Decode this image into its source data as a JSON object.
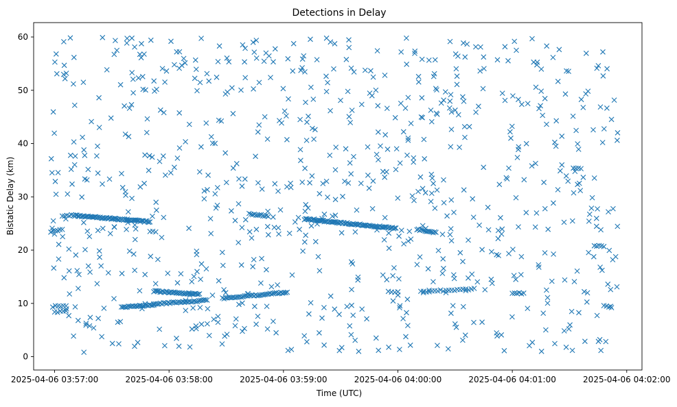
{
  "chart_data": {
    "type": "scatter",
    "title": "Detections in Delay",
    "xlabel": "Time (UTC)",
    "ylabel": "Bistatic Delay (km)",
    "marker": "x",
    "color": "#1f77b4",
    "grid": false,
    "legend": "none",
    "x_start": "2025-04-06 03:56:49",
    "x_end": "2025-04-06 04:02:08",
    "ylim": [
      -2.5,
      62.7
    ],
    "xticks": [
      "2025-04-06 03:57:00",
      "2025-04-06 03:58:00",
      "2025-04-06 03:59:00",
      "2025-04-06 04:00:00",
      "2025-04-06 04:01:00",
      "2025-04-06 04:02:00"
    ],
    "yticks": [
      0,
      10,
      20,
      30,
      40,
      50,
      60
    ],
    "tracks": [
      {
        "start": "2025-04-06 03:56:58",
        "end": "2025-04-06 03:57:04",
        "y_start": 23.5,
        "y_end": 23.9,
        "count": 6
      },
      {
        "start": "2025-04-06 03:57:04",
        "end": "2025-04-06 03:57:10",
        "y_start": 26.3,
        "y_end": 26.6,
        "count": 6
      },
      {
        "start": "2025-04-06 03:57:10",
        "end": "2025-04-06 03:57:50",
        "y_start": 26.5,
        "y_end": 25.3,
        "count": 70
      },
      {
        "start": "2025-04-06 03:57:50",
        "end": "2025-04-06 03:57:53",
        "y_start": 23.6,
        "y_end": 23.4,
        "count": 3
      },
      {
        "start": "2025-04-06 03:56:59",
        "end": "2025-04-06 03:57:06",
        "y_start": 9.4,
        "y_end": 9.6,
        "count": 6
      },
      {
        "start": "2025-04-06 03:57:00",
        "end": "2025-04-06 03:57:06",
        "y_start": 8.4,
        "y_end": 8.6,
        "count": 5
      },
      {
        "start": "2025-04-06 03:57:35",
        "end": "2025-04-06 03:57:52",
        "y_start": 9.3,
        "y_end": 9.7,
        "count": 24
      },
      {
        "start": "2025-04-06 03:57:52",
        "end": "2025-04-06 03:58:16",
        "y_start": 12.3,
        "y_end": 11.7,
        "count": 38
      },
      {
        "start": "2025-04-06 03:57:52",
        "end": "2025-04-06 03:58:20",
        "y_start": 9.9,
        "y_end": 10.6,
        "count": 34
      },
      {
        "start": "2025-04-06 03:58:28",
        "end": "2025-04-06 03:59:02",
        "y_start": 10.9,
        "y_end": 12.1,
        "count": 42
      },
      {
        "start": "2025-04-06 03:58:42",
        "end": "2025-04-06 03:58:52",
        "y_start": 26.8,
        "y_end": 26.4,
        "count": 12
      },
      {
        "start": "2025-04-06 03:59:11",
        "end": "2025-04-06 03:59:59",
        "y_start": 25.8,
        "y_end": 24.1,
        "count": 80
      },
      {
        "start": "2025-04-06 04:00:10",
        "end": "2025-04-06 04:00:20",
        "y_start": 23.9,
        "y_end": 23.3,
        "count": 15
      },
      {
        "start": "2025-04-06 03:59:55",
        "end": "2025-04-06 04:00:00",
        "y_start": 12.3,
        "y_end": 12.1,
        "count": 4
      },
      {
        "start": "2025-04-06 04:00:12",
        "end": "2025-04-06 04:00:40",
        "y_start": 12.2,
        "y_end": 12.7,
        "count": 20
      },
      {
        "start": "2025-04-06 04:01:00",
        "end": "2025-04-06 04:01:06",
        "y_start": 12.0,
        "y_end": 11.9,
        "count": 6
      },
      {
        "start": "2025-04-06 04:01:32",
        "end": "2025-04-06 04:01:36",
        "y_start": 35.5,
        "y_end": 35.4,
        "count": 4
      },
      {
        "start": "2025-04-06 04:01:43",
        "end": "2025-04-06 04:01:48",
        "y_start": 20.8,
        "y_end": 20.7,
        "count": 5
      },
      {
        "start": "2025-04-06 04:01:48",
        "end": "2025-04-06 04:01:52",
        "y_start": 9.5,
        "y_end": 9.3,
        "count": 4
      }
    ],
    "clutter": {
      "start": "2025-04-06 03:56:58",
      "end": "2025-04-06 04:01:56",
      "y_range": [
        0.8,
        59.9
      ],
      "count": 820
    }
  }
}
